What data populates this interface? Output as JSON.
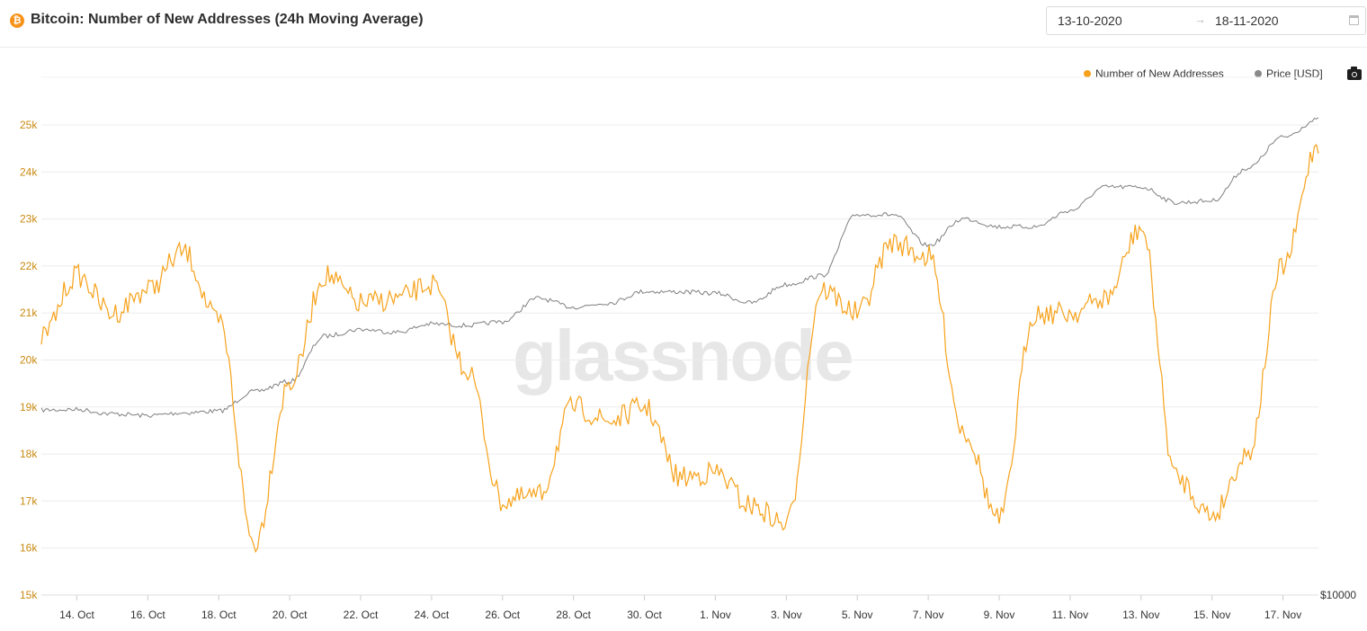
{
  "header": {
    "logo_glyph": "₿",
    "title": "Bitcoin: Number of New Addresses (24h Moving Average)",
    "date_start": "13-10-2020",
    "date_arrow": "→",
    "date_end": "18-11-2020"
  },
  "watermark": "glassnode",
  "colors": {
    "addresses": "#f7a21b",
    "price": "#7f7f7f",
    "grid": "#ececec",
    "ytick": "#c98a12"
  },
  "chart_data": {
    "type": "line",
    "title": "Bitcoin: Number of New Addresses (24h Moving Average)",
    "x_range": [
      "2020-10-13",
      "2020-11-18"
    ],
    "x_ticks": [
      "14. Oct",
      "16. Oct",
      "18. Oct",
      "20. Oct",
      "22. Oct",
      "24. Oct",
      "26. Oct",
      "28. Oct",
      "30. Oct",
      "1. Nov",
      "3. Nov",
      "5. Nov",
      "7. Nov",
      "9. Nov",
      "11. Nov",
      "13. Nov",
      "15. Nov",
      "17. Nov"
    ],
    "y_left": {
      "ticks": [
        "15k",
        "16k",
        "17k",
        "18k",
        "19k",
        "20k",
        "21k",
        "22k",
        "23k",
        "24k",
        "25k"
      ],
      "range": [
        15000,
        25000
      ]
    },
    "y_right": {
      "ticks": [
        "$10000"
      ],
      "scale": "log"
    },
    "legend_position": "top-right",
    "grid": true,
    "series": [
      {
        "name": "Number of New Addresses",
        "axis": "left",
        "x": [
          "2020-10-13",
          "2020-10-14",
          "2020-10-15",
          "2020-10-16",
          "2020-10-17",
          "2020-10-18",
          "2020-10-19",
          "2020-10-20",
          "2020-10-21",
          "2020-10-22",
          "2020-10-23",
          "2020-10-24",
          "2020-10-25",
          "2020-10-26",
          "2020-10-27",
          "2020-10-28",
          "2020-10-29",
          "2020-10-30",
          "2020-10-31",
          "2020-11-01",
          "2020-11-02",
          "2020-11-03",
          "2020-11-04",
          "2020-11-05",
          "2020-11-06",
          "2020-11-07",
          "2020-11-08",
          "2020-11-09",
          "2020-11-10",
          "2020-11-11",
          "2020-11-12",
          "2020-11-13",
          "2020-11-14",
          "2020-11-15",
          "2020-11-16",
          "2020-11-17",
          "2020-11-18"
        ],
        "values": [
          20500,
          21800,
          21000,
          21500,
          22300,
          20800,
          16100,
          19500,
          21800,
          21200,
          21300,
          21600,
          19800,
          17000,
          17100,
          19000,
          18700,
          19000,
          17500,
          17600,
          16900,
          16500,
          21500,
          21000,
          22500,
          22200,
          18500,
          16600,
          21000,
          21000,
          21300,
          22800,
          17500,
          16700,
          18000,
          22000,
          24600
        ]
      },
      {
        "name": "Price [USD]",
        "axis": "right",
        "x": [
          "2020-10-13",
          "2020-10-14",
          "2020-10-15",
          "2020-10-16",
          "2020-10-17",
          "2020-10-18",
          "2020-10-19",
          "2020-10-20",
          "2020-10-21",
          "2020-10-22",
          "2020-10-23",
          "2020-10-24",
          "2020-10-25",
          "2020-10-26",
          "2020-10-27",
          "2020-10-28",
          "2020-10-29",
          "2020-10-30",
          "2020-10-31",
          "2020-11-01",
          "2020-11-02",
          "2020-11-03",
          "2020-11-04",
          "2020-11-05",
          "2020-11-06",
          "2020-11-07",
          "2020-11-08",
          "2020-11-09",
          "2020-11-10",
          "2020-11-11",
          "2020-11-12",
          "2020-11-13",
          "2020-11-14",
          "2020-11-15",
          "2020-11-16",
          "2020-11-17",
          "2020-11-18"
        ],
        "values": [
          11420,
          11430,
          11350,
          11320,
          11370,
          11400,
          11760,
          11950,
          12850,
          12990,
          12930,
          13100,
          13070,
          13150,
          13650,
          13460,
          13550,
          13800,
          13790,
          13760,
          13550,
          13950,
          14150,
          15600,
          15600,
          14850,
          15500,
          15300,
          15300,
          15700,
          16300,
          16300,
          15900,
          15950,
          16800,
          17650,
          18150
        ]
      }
    ]
  },
  "legend": {
    "addresses": "Number of New Addresses",
    "price": "Price [USD]"
  }
}
